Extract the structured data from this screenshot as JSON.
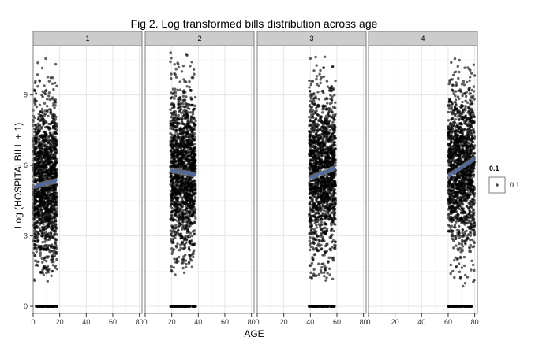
{
  "chart_data": {
    "type": "scatter",
    "title": "Fig 2. Log transformed bills distribution across age",
    "xlabel": "AGE",
    "ylabel": "Log (HOSPITALBILL + 1)",
    "xlim": [
      0,
      82
    ],
    "ylim": [
      -0.3,
      11.1
    ],
    "x_ticks": [
      0,
      20,
      40,
      60,
      80
    ],
    "y_ticks": [
      0,
      3,
      6,
      9
    ],
    "x_tick_labels": [
      "0",
      "20",
      "40",
      "60",
      "80"
    ],
    "y_tick_labels": [
      "0",
      "3",
      "6",
      "9"
    ],
    "grid": true,
    "legend": {
      "title": "0.1",
      "label": "0.1",
      "position": "right"
    },
    "colors": {
      "points": "#000000",
      "trend": "#4a6bb5",
      "trend_band": "#9aa3b3",
      "strip": "#cccccc",
      "panel_border": "#7f7f7f"
    },
    "facets": [
      {
        "label": "1",
        "age_range": [
          0,
          18
        ],
        "main_density": {
          "age": [
            0,
            18
          ],
          "y_range": [
            1.0,
            10.7
          ],
          "y_center": 5.3
        },
        "zero_bill_age_range": [
          2,
          18
        ],
        "trend": {
          "x": [
            0,
            18
          ],
          "y": [
            5.1,
            5.35
          ]
        }
      },
      {
        "label": "2",
        "age_range": [
          19,
          38
        ],
        "main_density": {
          "age": [
            19,
            38
          ],
          "y_range": [
            1.2,
            10.8
          ],
          "y_center": 5.7
        },
        "zero_bill_age_range": [
          19,
          38
        ],
        "trend": {
          "x": [
            19,
            38
          ],
          "y": [
            5.8,
            5.6
          ]
        }
      },
      {
        "label": "3",
        "age_range": [
          39,
          59
        ],
        "main_density": {
          "age": [
            39,
            59
          ],
          "y_range": [
            0.9,
            10.8
          ],
          "y_center": 5.6
        },
        "zero_bill_age_range": [
          39,
          59
        ],
        "trend": {
          "x": [
            39,
            59
          ],
          "y": [
            5.45,
            5.9
          ]
        }
      },
      {
        "label": "4",
        "age_range": [
          60,
          80
        ],
        "main_density": {
          "age": [
            60,
            80
          ],
          "y_range": [
            0.8,
            10.6
          ],
          "y_center": 5.9
        },
        "zero_bill_age_range": [
          60,
          78
        ],
        "trend": {
          "x": [
            60,
            80
          ],
          "y": [
            5.55,
            6.3
          ]
        }
      }
    ]
  }
}
